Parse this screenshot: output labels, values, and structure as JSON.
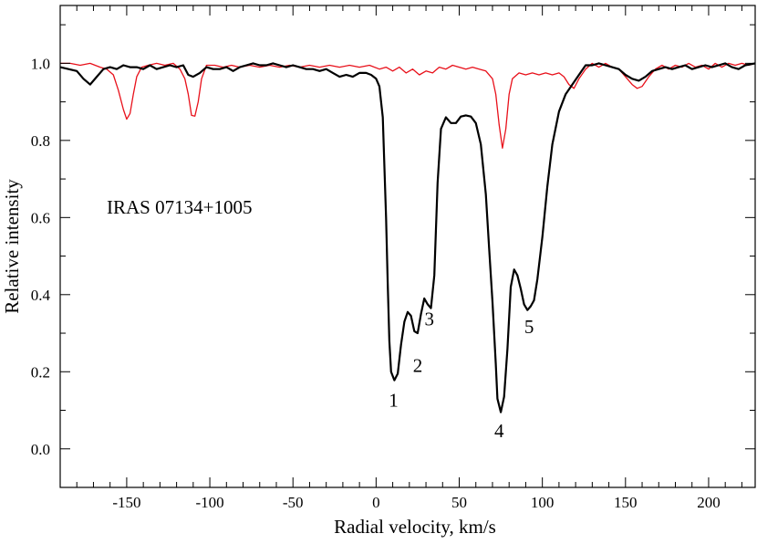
{
  "chart_data": {
    "type": "line",
    "title": "",
    "annotation": "IRAS 07134+1005",
    "xlabel": "Radial velocity,  km/s",
    "ylabel": "Relative intensity",
    "xlim": [
      -190,
      228
    ],
    "ylim": [
      -0.1,
      1.15
    ],
    "xticks": [
      -150,
      -100,
      -50,
      0,
      50,
      100,
      150,
      200
    ],
    "yticks": [
      0.0,
      0.2,
      0.4,
      0.6,
      0.8,
      1.0
    ],
    "ytick_labels": [
      "0.0",
      "0.2",
      "0.4",
      "0.6",
      "0.8",
      "1.0"
    ],
    "grid": false,
    "legend": "none",
    "series": [
      {
        "color": "#000000",
        "points": [
          [
            -190,
            0.99
          ],
          [
            -185,
            0.985
          ],
          [
            -180,
            0.98
          ],
          [
            -176,
            0.96
          ],
          [
            -172,
            0.945
          ],
          [
            -168,
            0.965
          ],
          [
            -164,
            0.985
          ],
          [
            -160,
            0.99
          ],
          [
            -156,
            0.985
          ],
          [
            -152,
            0.995
          ],
          [
            -148,
            0.99
          ],
          [
            -144,
            0.99
          ],
          [
            -140,
            0.985
          ],
          [
            -136,
            0.995
          ],
          [
            -132,
            0.985
          ],
          [
            -128,
            0.99
          ],
          [
            -124,
            0.995
          ],
          [
            -120,
            0.99
          ],
          [
            -116,
            0.995
          ],
          [
            -113,
            0.97
          ],
          [
            -110,
            0.965
          ],
          [
            -106,
            0.975
          ],
          [
            -102,
            0.99
          ],
          [
            -98,
            0.985
          ],
          [
            -94,
            0.985
          ],
          [
            -90,
            0.99
          ],
          [
            -86,
            0.98
          ],
          [
            -82,
            0.99
          ],
          [
            -78,
            0.995
          ],
          [
            -74,
            1.0
          ],
          [
            -70,
            0.995
          ],
          [
            -66,
            0.995
          ],
          [
            -62,
            1.0
          ],
          [
            -58,
            0.995
          ],
          [
            -54,
            0.99
          ],
          [
            -50,
            0.995
          ],
          [
            -46,
            0.99
          ],
          [
            -42,
            0.985
          ],
          [
            -38,
            0.985
          ],
          [
            -34,
            0.98
          ],
          [
            -30,
            0.985
          ],
          [
            -26,
            0.975
          ],
          [
            -22,
            0.965
          ],
          [
            -18,
            0.97
          ],
          [
            -14,
            0.965
          ],
          [
            -10,
            0.975
          ],
          [
            -6,
            0.975
          ],
          [
            -3,
            0.97
          ],
          [
            0,
            0.96
          ],
          [
            2,
            0.94
          ],
          [
            4,
            0.86
          ],
          [
            6,
            0.6
          ],
          [
            7,
            0.43
          ],
          [
            8,
            0.28
          ],
          [
            9,
            0.2
          ],
          [
            11,
            0.178
          ],
          [
            13,
            0.195
          ],
          [
            15,
            0.27
          ],
          [
            17,
            0.33
          ],
          [
            19,
            0.355
          ],
          [
            21,
            0.345
          ],
          [
            23,
            0.305
          ],
          [
            25,
            0.3
          ],
          [
            27,
            0.35
          ],
          [
            29,
            0.39
          ],
          [
            31,
            0.375
          ],
          [
            33,
            0.365
          ],
          [
            35,
            0.45
          ],
          [
            37,
            0.69
          ],
          [
            39,
            0.83
          ],
          [
            42,
            0.86
          ],
          [
            45,
            0.845
          ],
          [
            48,
            0.845
          ],
          [
            51,
            0.862
          ],
          [
            54,
            0.865
          ],
          [
            57,
            0.862
          ],
          [
            60,
            0.845
          ],
          [
            63,
            0.79
          ],
          [
            66,
            0.66
          ],
          [
            68,
            0.52
          ],
          [
            70,
            0.38
          ],
          [
            72,
            0.22
          ],
          [
            73,
            0.13
          ],
          [
            75,
            0.095
          ],
          [
            77,
            0.135
          ],
          [
            79,
            0.26
          ],
          [
            81,
            0.42
          ],
          [
            83,
            0.465
          ],
          [
            85,
            0.45
          ],
          [
            87,
            0.415
          ],
          [
            89,
            0.375
          ],
          [
            91,
            0.36
          ],
          [
            93,
            0.37
          ],
          [
            95,
            0.385
          ],
          [
            97,
            0.44
          ],
          [
            100,
            0.55
          ],
          [
            103,
            0.68
          ],
          [
            106,
            0.79
          ],
          [
            110,
            0.875
          ],
          [
            114,
            0.92
          ],
          [
            118,
            0.945
          ],
          [
            122,
            0.97
          ],
          [
            126,
            0.995
          ],
          [
            130,
            0.995
          ],
          [
            134,
            1.0
          ],
          [
            138,
            0.995
          ],
          [
            142,
            0.99
          ],
          [
            146,
            0.985
          ],
          [
            150,
            0.97
          ],
          [
            154,
            0.96
          ],
          [
            158,
            0.955
          ],
          [
            162,
            0.965
          ],
          [
            166,
            0.98
          ],
          [
            170,
            0.985
          ],
          [
            174,
            0.99
          ],
          [
            178,
            0.985
          ],
          [
            182,
            0.99
          ],
          [
            186,
            0.995
          ],
          [
            190,
            0.985
          ],
          [
            194,
            0.99
          ],
          [
            198,
            0.995
          ],
          [
            202,
            0.99
          ],
          [
            206,
            0.995
          ],
          [
            210,
            1.0
          ],
          [
            214,
            0.99
          ],
          [
            218,
            0.985
          ],
          [
            222,
            0.995
          ],
          [
            228,
            1.0
          ]
        ]
      },
      {
        "color": "#e8101a",
        "points": [
          [
            -190,
            1.0
          ],
          [
            -184,
            1.0
          ],
          [
            -178,
            0.995
          ],
          [
            -172,
            1.0
          ],
          [
            -166,
            0.99
          ],
          [
            -162,
            0.985
          ],
          [
            -158,
            0.97
          ],
          [
            -155,
            0.93
          ],
          [
            -152,
            0.88
          ],
          [
            -150,
            0.855
          ],
          [
            -148,
            0.87
          ],
          [
            -146,
            0.92
          ],
          [
            -144,
            0.965
          ],
          [
            -141,
            0.99
          ],
          [
            -137,
            0.995
          ],
          [
            -132,
            1.0
          ],
          [
            -127,
            0.995
          ],
          [
            -122,
            1.0
          ],
          [
            -118,
            0.985
          ],
          [
            -115,
            0.96
          ],
          [
            -113,
            0.92
          ],
          [
            -111,
            0.865
          ],
          [
            -109,
            0.863
          ],
          [
            -107,
            0.9
          ],
          [
            -105,
            0.96
          ],
          [
            -102,
            0.995
          ],
          [
            -97,
            0.995
          ],
          [
            -92,
            0.99
          ],
          [
            -87,
            0.995
          ],
          [
            -82,
            0.99
          ],
          [
            -76,
            0.995
          ],
          [
            -70,
            0.99
          ],
          [
            -64,
            0.995
          ],
          [
            -58,
            0.99
          ],
          [
            -52,
            0.995
          ],
          [
            -46,
            0.99
          ],
          [
            -40,
            0.995
          ],
          [
            -34,
            0.99
          ],
          [
            -28,
            0.995
          ],
          [
            -22,
            0.99
          ],
          [
            -16,
            0.995
          ],
          [
            -10,
            0.99
          ],
          [
            -4,
            0.995
          ],
          [
            2,
            0.985
          ],
          [
            6,
            0.99
          ],
          [
            10,
            0.98
          ],
          [
            14,
            0.99
          ],
          [
            18,
            0.975
          ],
          [
            22,
            0.985
          ],
          [
            26,
            0.97
          ],
          [
            30,
            0.98
          ],
          [
            34,
            0.975
          ],
          [
            38,
            0.99
          ],
          [
            42,
            0.985
          ],
          [
            46,
            0.995
          ],
          [
            50,
            0.99
          ],
          [
            54,
            0.985
          ],
          [
            58,
            0.99
          ],
          [
            62,
            0.985
          ],
          [
            66,
            0.98
          ],
          [
            70,
            0.96
          ],
          [
            72,
            0.92
          ],
          [
            74,
            0.84
          ],
          [
            76,
            0.78
          ],
          [
            78,
            0.83
          ],
          [
            80,
            0.92
          ],
          [
            82,
            0.96
          ],
          [
            86,
            0.975
          ],
          [
            90,
            0.97
          ],
          [
            94,
            0.975
          ],
          [
            98,
            0.97
          ],
          [
            102,
            0.975
          ],
          [
            106,
            0.97
          ],
          [
            110,
            0.975
          ],
          [
            113,
            0.965
          ],
          [
            116,
            0.945
          ],
          [
            119,
            0.935
          ],
          [
            122,
            0.96
          ],
          [
            126,
            0.985
          ],
          [
            130,
            1.0
          ],
          [
            134,
            0.99
          ],
          [
            138,
            1.0
          ],
          [
            142,
            0.99
          ],
          [
            146,
            0.985
          ],
          [
            150,
            0.965
          ],
          [
            154,
            0.945
          ],
          [
            157,
            0.935
          ],
          [
            160,
            0.94
          ],
          [
            164,
            0.965
          ],
          [
            168,
            0.985
          ],
          [
            172,
            0.995
          ],
          [
            176,
            0.985
          ],
          [
            180,
            0.995
          ],
          [
            184,
            0.99
          ],
          [
            188,
            1.0
          ],
          [
            192,
            0.99
          ],
          [
            196,
            0.995
          ],
          [
            200,
            0.985
          ],
          [
            204,
            1.0
          ],
          [
            208,
            0.99
          ],
          [
            212,
            1.0
          ],
          [
            216,
            0.995
          ],
          [
            220,
            1.0
          ],
          [
            224,
            0.995
          ],
          [
            228,
            1.0
          ]
        ]
      }
    ],
    "peak_labels": [
      {
        "text": "1",
        "x": 10.5,
        "y": 0.11
      },
      {
        "text": "2",
        "x": 25,
        "y": 0.2
      },
      {
        "text": "3",
        "x": 32,
        "y": 0.32
      },
      {
        "text": "4",
        "x": 74,
        "y": 0.03
      },
      {
        "text": "5",
        "x": 92,
        "y": 0.3
      }
    ]
  }
}
